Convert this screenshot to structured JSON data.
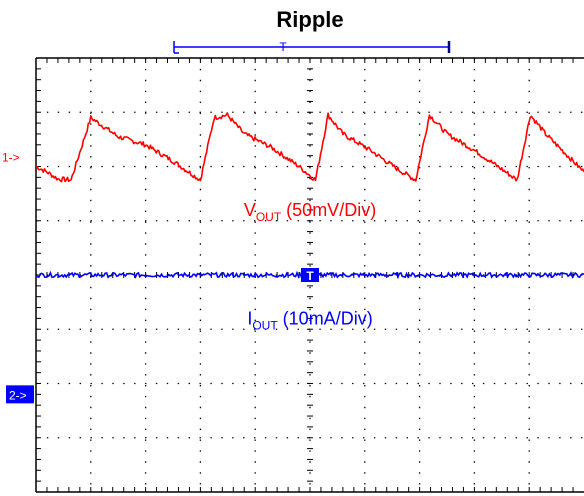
{
  "chart_data": {
    "type": "line",
    "title": "Ripple",
    "xlabel": "",
    "ylabel": "",
    "grid": true,
    "divisions": {
      "x": 10,
      "y": 8
    },
    "x_unit": "div",
    "y_unit": "div",
    "xlim": [
      0,
      10
    ],
    "ylim": [
      -4,
      4
    ],
    "series": [
      {
        "name": "VOUT (50mV/Div)",
        "color": "#ff0000",
        "ref_marker": "1->",
        "ref_level_div": 2.18,
        "peaks_div": [
          1.64,
          3.49,
          5.33,
          7.18,
          9.02
        ],
        "peak_value_div": 2.95,
        "trough_value_div": 1.75,
        "x": [
          0.0,
          0.2,
          0.4,
          0.64,
          1.0,
          1.5,
          2.0,
          2.5,
          3.0,
          3.25,
          3.49,
          3.8,
          4.3,
          4.8,
          5.1,
          5.33,
          5.6,
          6.1,
          6.6,
          6.93,
          7.18,
          7.5,
          8.0,
          8.5,
          8.78,
          9.02,
          9.3,
          9.8,
          10.0
        ],
        "values": [
          2.0,
          1.9,
          1.77,
          1.75,
          2.9,
          2.55,
          2.4,
          2.1,
          1.75,
          2.9,
          2.95,
          2.6,
          2.35,
          2.0,
          1.75,
          2.95,
          2.6,
          2.3,
          1.95,
          1.75,
          2.95,
          2.6,
          2.3,
          1.95,
          1.75,
          2.95,
          2.6,
          2.1,
          1.9
        ]
      },
      {
        "name": "IOUT (10mA/Div)",
        "color": "#0000ff",
        "ref_marker": "2->",
        "ref_level_div": -2.2,
        "x": [
          0,
          10
        ],
        "values": [
          0.0,
          0.0
        ]
      }
    ],
    "annotations": [
      {
        "main": "V",
        "sub": "OUT",
        "rest": " (50mV/Div)",
        "color": "#ff0000",
        "ref_value_div": 1.2
      },
      {
        "main": "I",
        "sub": "OUT",
        "rest": " (10mA/Div)",
        "color": "#0000ff",
        "ref_value_div": -0.8
      }
    ],
    "trigger_marker": "T",
    "colors": {
      "vout": "#ff0000",
      "iout": "#0000ff",
      "grid": "#000000",
      "frame": "#000000"
    }
  }
}
